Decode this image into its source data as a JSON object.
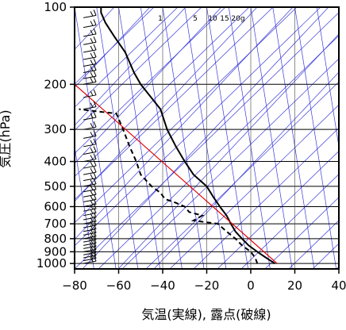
{
  "chart_data": {
    "type": "line",
    "title": "",
    "xlabel": "気温(実線), 露点(破線)",
    "ylabel": "気圧(hPa)",
    "xlim": [
      -80,
      40
    ],
    "ylim": [
      1050,
      100
    ],
    "y_scale": "log",
    "x_ticks": [
      -80,
      -60,
      -40,
      -20,
      0,
      20,
      40
    ],
    "x_tick_labels": [
      "−80",
      "−60",
      "−40",
      "−20",
      "0",
      "20",
      "40"
    ],
    "y_ticks": [
      100,
      200,
      300,
      400,
      500,
      600,
      700,
      800,
      900,
      1000
    ],
    "y_tick_labels": [
      "100",
      "200",
      "300",
      "400",
      "500",
      "600",
      "700",
      "800",
      "900",
      "1000"
    ],
    "mixing_ratio_labels": [
      "1",
      "5",
      "10",
      "15",
      "20g"
    ],
    "mixing_ratio_values": [
      1,
      5,
      10,
      15,
      20
    ],
    "series": [
      {
        "role": "temperature",
        "style": "solid",
        "color": "#000000",
        "points": [
          {
            "p": 1000,
            "t": 11
          },
          {
            "p": 950,
            "t": 7
          },
          {
            "p": 900,
            "t": 3
          },
          {
            "p": 850,
            "t": -1
          },
          {
            "p": 800,
            "t": -4
          },
          {
            "p": 750,
            "t": -7
          },
          {
            "p": 700,
            "t": -9
          },
          {
            "p": 650,
            "t": -11
          },
          {
            "p": 600,
            "t": -14
          },
          {
            "p": 550,
            "t": -17
          },
          {
            "p": 500,
            "t": -20
          },
          {
            "p": 450,
            "t": -26
          },
          {
            "p": 400,
            "t": -30
          },
          {
            "p": 350,
            "t": -34
          },
          {
            "p": 300,
            "t": -38
          },
          {
            "p": 250,
            "t": -41
          },
          {
            "p": 200,
            "t": -50
          },
          {
            "p": 180,
            "t": -53
          },
          {
            "p": 150,
            "t": -57
          },
          {
            "p": 130,
            "t": -62
          },
          {
            "p": 115,
            "t": -66
          },
          {
            "p": 105,
            "t": -68
          },
          {
            "p": 100,
            "t": -68
          }
        ]
      },
      {
        "role": "dewpoint",
        "style": "dashed",
        "color": "#000000",
        "points": [
          {
            "p": 1000,
            "t": 3
          },
          {
            "p": 950,
            "t": 2
          },
          {
            "p": 900,
            "t": 0
          },
          {
            "p": 850,
            "t": -4
          },
          {
            "p": 800,
            "t": -7
          },
          {
            "p": 750,
            "t": -11
          },
          {
            "p": 700,
            "t": -15
          },
          {
            "p": 680,
            "t": -26
          },
          {
            "p": 650,
            "t": -22
          },
          {
            "p": 630,
            "t": -28
          },
          {
            "p": 600,
            "t": -30
          },
          {
            "p": 580,
            "t": -34
          },
          {
            "p": 560,
            "t": -39
          },
          {
            "p": 530,
            "t": -41
          },
          {
            "p": 500,
            "t": -45
          },
          {
            "p": 450,
            "t": -50
          },
          {
            "p": 400,
            "t": -52
          },
          {
            "p": 350,
            "t": -55
          },
          {
            "p": 300,
            "t": -58
          },
          {
            "p": 260,
            "t": -61
          },
          {
            "p": 255,
            "t": -70
          },
          {
            "p": 250,
            "t": -78
          }
        ]
      },
      {
        "role": "parcel",
        "style": "solid",
        "color": "#e00000",
        "points": [
          {
            "p": 1000,
            "t": 12
          },
          {
            "p": 200,
            "t": -80
          }
        ]
      }
    ],
    "wind_barbs": {
      "x_value": -76,
      "levels": [
        1000,
        975,
        950,
        925,
        900,
        875,
        850,
        825,
        800,
        775,
        750,
        725,
        700,
        675,
        650,
        625,
        600,
        575,
        550,
        525,
        500,
        475,
        450,
        425,
        400,
        375,
        350,
        325,
        300,
        275,
        250,
        225,
        200,
        190,
        180,
        170,
        160,
        150,
        140,
        130,
        120,
        110,
        100
      ]
    },
    "colors": {
      "background": "#ffffff",
      "frame": "#000000",
      "grid": "#000000",
      "auxiliary_lines": "#3a3ad8",
      "parcel_line": "#e00000",
      "wind_barbs": "#000000"
    },
    "grid": true,
    "legend": "none"
  }
}
